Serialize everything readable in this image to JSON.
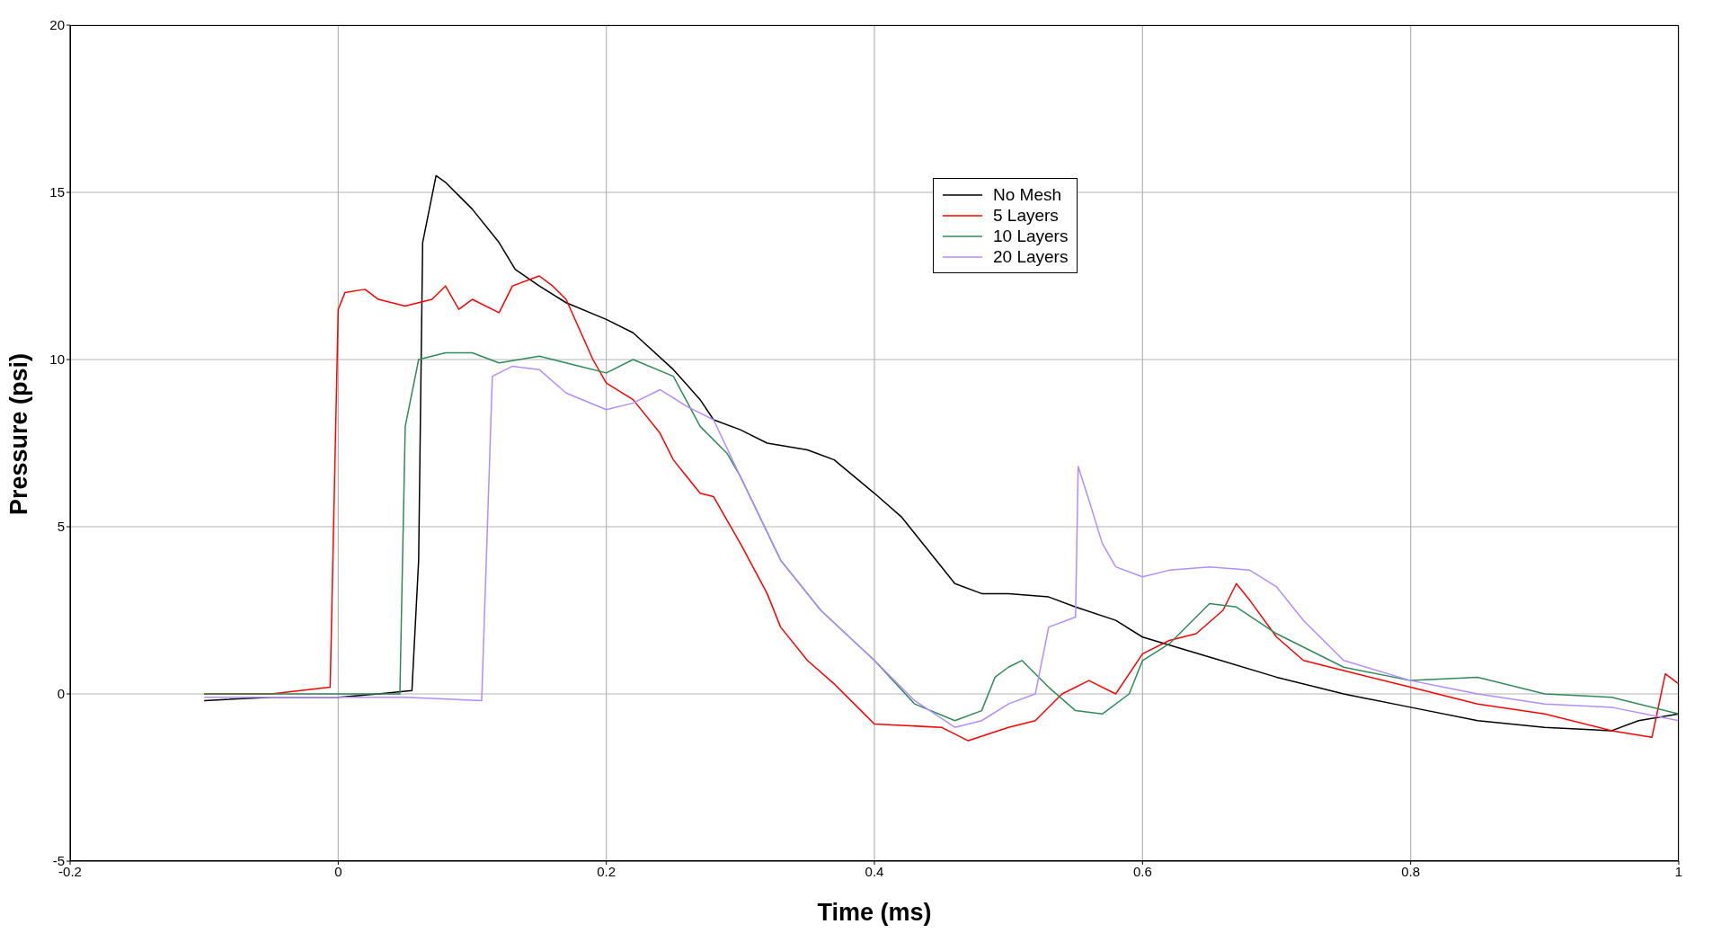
{
  "chart_data": {
    "type": "line",
    "xlabel": "Time (ms)",
    "ylabel": "Pressure (psi)",
    "xlim": [
      -0.2,
      1
    ],
    "xticks": [
      -0.2,
      0,
      0.2,
      0.4,
      0.6,
      0.8,
      1
    ],
    "ylim": [
      -5,
      20
    ],
    "yticks": [
      -5,
      0,
      5,
      10,
      15,
      20
    ],
    "grid": true,
    "legend": "top",
    "marker": "none",
    "line_style": "solid",
    "series": [
      {
        "name": "No Mesh",
        "color": "#000000",
        "x": [
          -0.1,
          -0.05,
          0,
          0.03,
          0.055,
          0.06,
          0.063,
          0.073,
          0.08,
          0.1,
          0.12,
          0.132,
          0.15,
          0.17,
          0.2,
          0.22,
          0.25,
          0.27,
          0.28,
          0.3,
          0.32,
          0.35,
          0.37,
          0.4,
          0.42,
          0.44,
          0.46,
          0.48,
          0.5,
          0.53,
          0.55,
          0.58,
          0.6,
          0.65,
          0.7,
          0.75,
          0.8,
          0.85,
          0.9,
          0.95,
          0.97,
          1.0
        ],
        "values": [
          -0.2,
          -0.1,
          -0.1,
          0,
          0.1,
          4,
          13.5,
          15.5,
          15.3,
          14.5,
          13.5,
          12.7,
          12.2,
          11.7,
          11.2,
          10.8,
          9.7,
          8.8,
          8.2,
          7.9,
          7.5,
          7.3,
          7,
          6,
          5.3,
          4.3,
          3.3,
          3,
          3,
          2.9,
          2.6,
          2.2,
          1.7,
          1.1,
          0.5,
          0,
          -0.4,
          -0.8,
          -1,
          -1.1,
          -0.8,
          -0.6
        ]
      },
      {
        "name": "5 Layers",
        "color": "#ff0000",
        "x": [
          -0.1,
          -0.05,
          -0.006,
          0,
          0.005,
          0.02,
          0.03,
          0.05,
          0.07,
          0.08,
          0.09,
          0.1,
          0.12,
          0.13,
          0.15,
          0.16,
          0.17,
          0.19,
          0.2,
          0.22,
          0.24,
          0.25,
          0.27,
          0.28,
          0.3,
          0.32,
          0.33,
          0.35,
          0.37,
          0.39,
          0.4,
          0.45,
          0.47,
          0.5,
          0.52,
          0.54,
          0.56,
          0.58,
          0.6,
          0.62,
          0.64,
          0.66,
          0.67,
          0.68,
          0.7,
          0.72,
          0.75,
          0.8,
          0.85,
          0.9,
          0.95,
          0.98,
          0.99,
          1.0
        ],
        "values": [
          0,
          0,
          0.2,
          11.5,
          12,
          12.1,
          11.8,
          11.6,
          11.8,
          12.2,
          11.5,
          11.8,
          11.4,
          12.2,
          12.5,
          12.2,
          11.8,
          10,
          9.3,
          8.8,
          7.8,
          7,
          6,
          5.9,
          4.5,
          3,
          2,
          1,
          0.3,
          -0.5,
          -0.9,
          -1,
          -1.4,
          -1,
          -0.8,
          0,
          0.4,
          0,
          1.2,
          1.6,
          1.8,
          2.5,
          3.3,
          2.8,
          1.7,
          1,
          0.7,
          0.2,
          -0.3,
          -0.6,
          -1.1,
          -1.3,
          0.6,
          0.3
        ]
      },
      {
        "name": "10 Layers",
        "color": "#2e8b57",
        "x": [
          -0.1,
          -0.05,
          0,
          0.046,
          0.05,
          0.06,
          0.08,
          0.1,
          0.12,
          0.15,
          0.18,
          0.2,
          0.22,
          0.25,
          0.27,
          0.29,
          0.3,
          0.33,
          0.36,
          0.4,
          0.43,
          0.46,
          0.48,
          0.49,
          0.5,
          0.51,
          0.53,
          0.55,
          0.57,
          0.59,
          0.6,
          0.62,
          0.65,
          0.67,
          0.7,
          0.75,
          0.8,
          0.85,
          0.9,
          0.95,
          1.0
        ],
        "values": [
          0,
          0,
          0,
          0,
          8,
          10,
          10.2,
          10.2,
          9.9,
          10.1,
          9.8,
          9.6,
          10,
          9.5,
          8,
          7.2,
          6.5,
          4,
          2.5,
          1,
          -0.3,
          -0.8,
          -0.5,
          0.5,
          0.8,
          1,
          0.2,
          -0.5,
          -0.6,
          0,
          1,
          1.5,
          2.7,
          2.6,
          1.8,
          0.8,
          0.4,
          0.5,
          0,
          -0.1,
          -0.6
        ]
      },
      {
        "name": "20 Layers",
        "color": "#b48cff",
        "x": [
          -0.1,
          -0.05,
          0,
          0.05,
          0.107,
          0.115,
          0.13,
          0.15,
          0.17,
          0.2,
          0.22,
          0.24,
          0.26,
          0.28,
          0.3,
          0.33,
          0.36,
          0.4,
          0.43,
          0.46,
          0.48,
          0.5,
          0.52,
          0.53,
          0.55,
          0.552,
          0.56,
          0.57,
          0.58,
          0.6,
          0.62,
          0.65,
          0.68,
          0.7,
          0.72,
          0.75,
          0.8,
          0.85,
          0.9,
          0.95,
          1.0
        ],
        "values": [
          -0.1,
          -0.1,
          -0.1,
          -0.1,
          -0.2,
          9.5,
          9.8,
          9.7,
          9,
          8.5,
          8.7,
          9.1,
          8.6,
          8.2,
          6.5,
          4,
          2.5,
          1,
          -0.2,
          -1,
          -0.8,
          -0.3,
          0,
          2,
          2.3,
          6.8,
          5.8,
          4.5,
          3.8,
          3.5,
          3.7,
          3.8,
          3.7,
          3.2,
          2.2,
          1,
          0.4,
          0,
          -0.3,
          -0.4,
          -0.8
        ]
      }
    ]
  }
}
